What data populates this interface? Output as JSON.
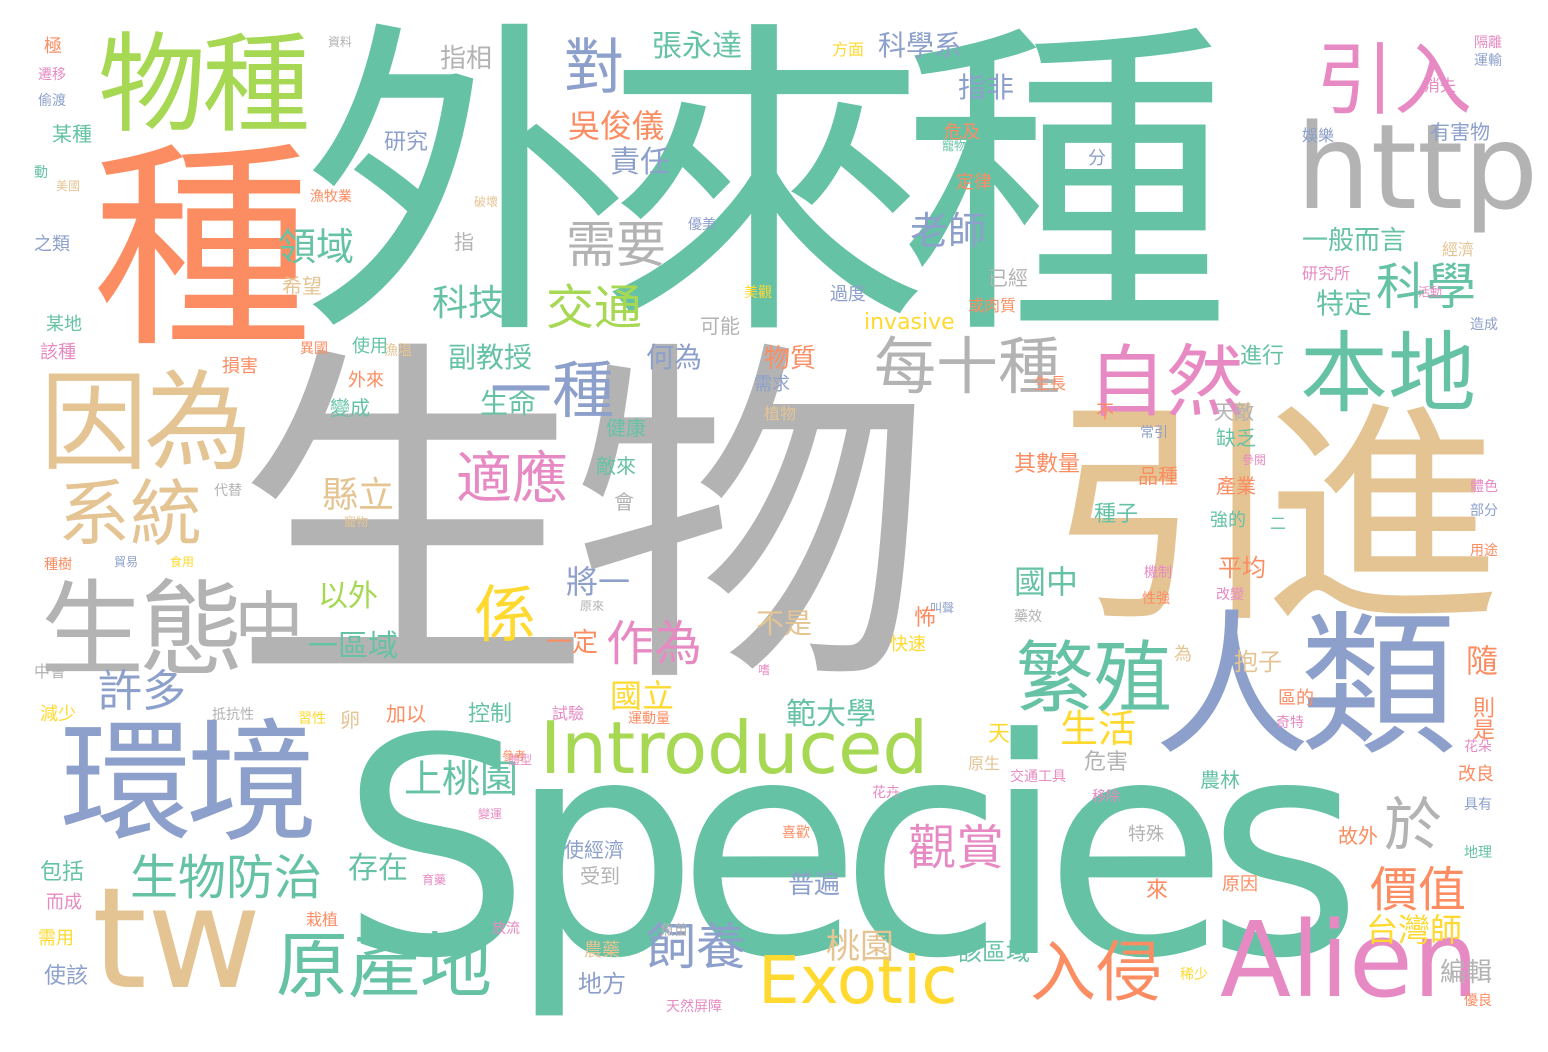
{
  "palette": {
    "teal": "#66c2a5",
    "orange": "#fc8d62",
    "blue": "#8da0cb",
    "pink": "#e78ac3",
    "green": "#a6d854",
    "yellow": "#ffd92f",
    "tan": "#e5c494",
    "gray": "#b3b3b3"
  },
  "words": [
    "生物",
    "外來種",
    "Species",
    "引進",
    "種",
    "物種",
    "因為",
    "環境",
    "tw",
    "人類",
    "http",
    "生態",
    "Alien",
    "本地",
    "自然",
    "引入",
    "繁殖",
    "Introduced",
    "系統",
    "Exotic",
    "原產地",
    "入侵",
    "中",
    "每十種",
    "一種",
    "適應",
    "係",
    "對",
    "需要",
    "生物防治",
    "於",
    "交通",
    "科學",
    "觀賞",
    "價值",
    "作為",
    "飼養",
    "老師",
    "領域",
    "科技",
    "國立",
    "生活",
    "許多",
    "上桃園",
    "範大學",
    "台灣師",
    "桃園",
    "縣立",
    "張永達",
    "吳俊儀",
    "科學系",
    "指相",
    "指非",
    "責任",
    "研究",
    "invasive",
    "一般而言",
    "特定",
    "副教授",
    "生命",
    "何為",
    "物質",
    "進行",
    "以外",
    "一區域",
    "國中",
    "將一",
    "一定",
    "不是",
    "存在",
    "普遍",
    "其數量",
    "種子",
    "品種",
    "產業",
    "平均",
    "抱子",
    "該區域",
    "編輯",
    "地方",
    "農藥",
    "隨",
    "則是",
    "危害",
    "改良",
    "故外",
    "原因",
    "來",
    "受到",
    "使經濟",
    "包括",
    "而成",
    "使該",
    "需用",
    "農林",
    "天",
    "原生",
    "控制",
    "加以",
    "卵",
    "習性",
    "減少",
    "抵抗性",
    "中會",
    "已經",
    "可能",
    "過度",
    "美觀",
    "研究所",
    "有害物",
    "危及",
    "定律",
    "娛樂",
    "分",
    "消失",
    "方面",
    "資料",
    "極",
    "遷移",
    "偷渡",
    "某種",
    "動",
    "美國",
    "之類",
    "漁牧業",
    "破壞",
    "優美",
    "經濟",
    "活動",
    "造成",
    "某地",
    "該種",
    "損害",
    "外來",
    "變成",
    "使用",
    "異國",
    "漁塭",
    "植物",
    "需求",
    "健康",
    "敵來",
    "會",
    "代替",
    "種樹",
    "缺乏",
    "天敵",
    "常引",
    "參閱",
    "體色",
    "部分",
    "用途",
    "強的",
    "二",
    "機制",
    "性強",
    "改變",
    "藥效",
    "原來",
    "試驗",
    "運動量",
    "嗜",
    "叫聲",
    "怖",
    "快速",
    "為",
    "區的",
    "奇特",
    "花朵",
    "具有",
    "地理",
    "移除",
    "花卉",
    "喜歡",
    "特殊",
    "育藥",
    "放流",
    "栽植",
    "魚苗",
    "天然屏障",
    "稀少",
    "優良",
    "交通工具",
    "寵物民眾",
    "或肉質",
    "希望",
    "生長",
    "指",
    "隔離",
    "運輸",
    "寵物",
    "貿易",
    "食用",
    "體型",
    "參考",
    "變運",
    "不"
  ]
}
